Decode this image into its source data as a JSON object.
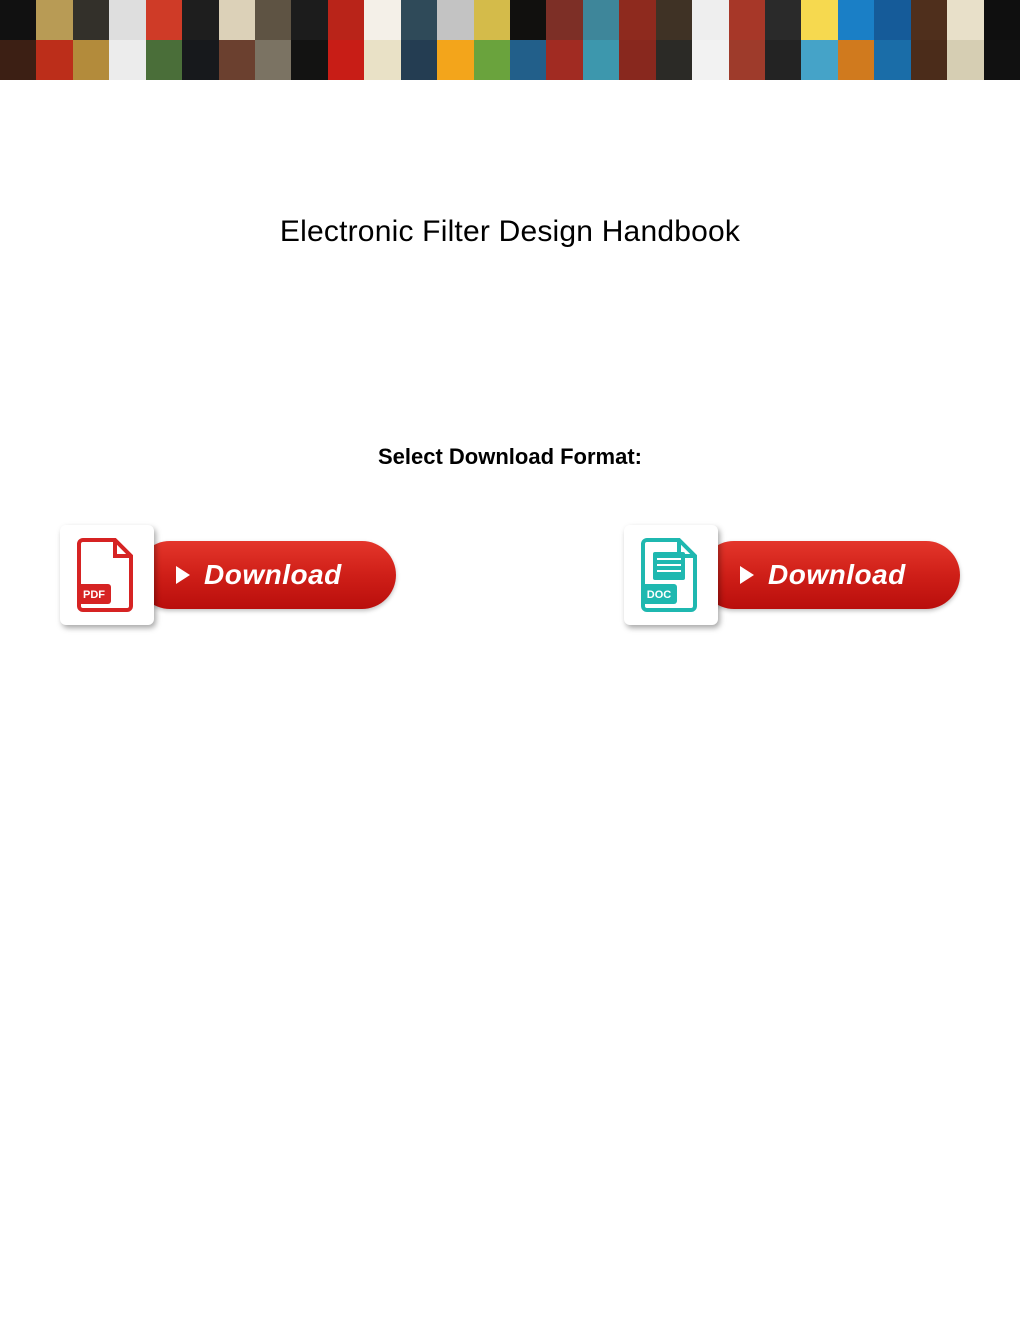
{
  "page_title": "Electronic Filter Design Handbook",
  "format_label": "Select Download Format:",
  "pdf_button": {
    "label": "Download",
    "icon_label": "PDF",
    "icon_color": "#d62323",
    "pill_gradient_top": "#e4362b",
    "pill_gradient_bottom": "#b90e0c"
  },
  "doc_button": {
    "label": "Download",
    "icon_label": "DOC",
    "icon_color": "#1fb8b0",
    "pill_gradient_top": "#e4362b",
    "pill_gradient_bottom": "#b90e0c"
  },
  "banner_colors": [
    "#111111",
    "#b89b55",
    "#33302a",
    "#dedede",
    "#cf3b27",
    "#1e1e1e",
    "#dcd1b8",
    "#5e5343",
    "#1c1c1c",
    "#b92419",
    "#f4f0e8",
    "#2f4a59",
    "#c3c3c3",
    "#d4bb4a",
    "#11100e",
    "#7d2f26",
    "#3e869a",
    "#8e2a1e",
    "#3f3225",
    "#eeeeee",
    "#a73728",
    "#2a2a2a",
    "#f6d94f",
    "#1a7fc6",
    "#155b99",
    "#4f2f1c",
    "#e8e0c9",
    "#0f0f0f",
    "#3c1f14",
    "#bc2e1a",
    "#b38b3b",
    "#ececec",
    "#4a6e39",
    "#17191c",
    "#6b402f",
    "#7b7363",
    "#131312",
    "#c81d16",
    "#e9e1c6",
    "#243d52",
    "#f3a51b",
    "#6aa33d",
    "#225f8a",
    "#a12b22",
    "#3d97ad",
    "#88281e",
    "#2b2a26",
    "#f2f2f2",
    "#9e3b2b",
    "#232323",
    "#45a3c8",
    "#d07a1e",
    "#1a6da8",
    "#4b2c1a",
    "#d6ceb3",
    "#111111"
  ]
}
